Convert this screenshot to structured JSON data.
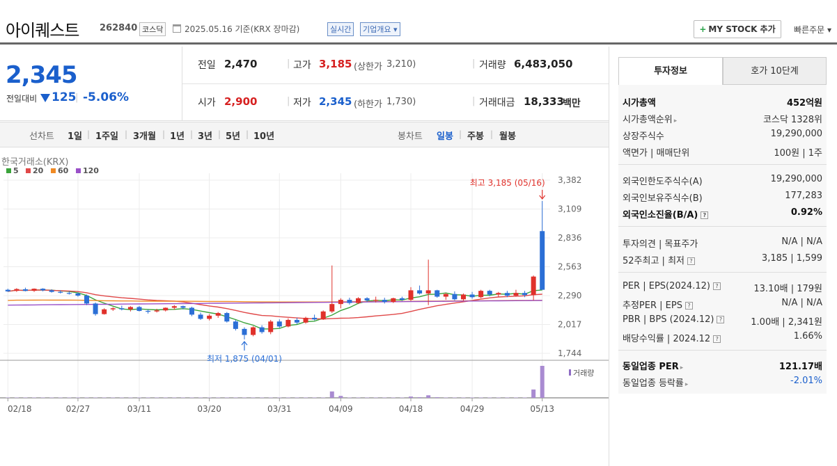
{
  "header": {
    "stock_name": "아이퀘스트",
    "stock_code": "262840",
    "market": "코스닥",
    "date_text": "2025.05.16  기준(KRX 장마감)",
    "realtime_label": "실시간",
    "overview_label": "기업개요",
    "mystock_label": "MY STOCK 추가",
    "quick_order_label": "빠른주문"
  },
  "price": {
    "current": "2,345",
    "change_label": "전일대비",
    "change_value": "125",
    "change_pct": "-5.06%"
  },
  "stats": {
    "prev_close_label": "전일",
    "prev_close": "2,470",
    "high_label": "고가",
    "high": "3,185",
    "upper_limit_label": "(상한가",
    "upper_limit": "3,210)",
    "volume_label": "거래량",
    "volume": "6,483,050",
    "open_label": "시가",
    "open": "2,900",
    "low_label": "저가",
    "low": "2,345",
    "lower_limit_label": "(하한가",
    "lower_limit": "1,730)",
    "amount_label": "거래대금",
    "amount": "18,333",
    "amount_unit": "백만"
  },
  "period_bar": {
    "line_label": "선차트",
    "periods": [
      "1일",
      "1주일",
      "3개월",
      "1년",
      "3년",
      "5년",
      "10년"
    ],
    "candle_label": "봉차트",
    "candles": [
      "일봉",
      "주봉",
      "월봉"
    ]
  },
  "chart_data": {
    "type": "candlestick",
    "source_label": "한국거래소(KRX)",
    "ma_legend": [
      {
        "name": "5",
        "color": "#3aa33a"
      },
      {
        "name": "20",
        "color": "#e04848"
      },
      {
        "name": "60",
        "color": "#f08a24"
      },
      {
        "name": "120",
        "color": "#9a50c8"
      }
    ],
    "y_ticks": [
      "3,382",
      "3,109",
      "2,836",
      "2,563",
      "2,290",
      "2,017",
      "1,744"
    ],
    "x_ticks": [
      "02/18",
      "02/27",
      "03/11",
      "03/20",
      "03/31",
      "04/09",
      "04/18",
      "04/29",
      "05/13"
    ],
    "max_annotation": "최고 3,185 (05/16)",
    "min_annotation": "최저 1,875 (04/01)",
    "volume_label": "거래량",
    "candles": [
      {
        "o": 2345,
        "h": 2355,
        "l": 2325,
        "c": 2330
      },
      {
        "o": 2335,
        "h": 2360,
        "l": 2325,
        "c": 2352
      },
      {
        "o": 2350,
        "h": 2365,
        "l": 2330,
        "c": 2335
      },
      {
        "o": 2335,
        "h": 2358,
        "l": 2325,
        "c": 2355
      },
      {
        "o": 2355,
        "h": 2360,
        "l": 2330,
        "c": 2340
      },
      {
        "o": 2340,
        "h": 2350,
        "l": 2318,
        "c": 2325
      },
      {
        "o": 2325,
        "h": 2340,
        "l": 2310,
        "c": 2318
      },
      {
        "o": 2315,
        "h": 2332,
        "l": 2300,
        "c": 2310
      },
      {
        "o": 2310,
        "h": 2320,
        "l": 2280,
        "c": 2290
      },
      {
        "o": 2290,
        "h": 2300,
        "l": 2200,
        "c": 2215
      },
      {
        "o": 2215,
        "h": 2225,
        "l": 2100,
        "c": 2115
      },
      {
        "o": 2115,
        "h": 2170,
        "l": 2110,
        "c": 2160
      },
      {
        "o": 2160,
        "h": 2180,
        "l": 2145,
        "c": 2170
      },
      {
        "o": 2170,
        "h": 2195,
        "l": 2150,
        "c": 2160
      },
      {
        "o": 2160,
        "h": 2190,
        "l": 2140,
        "c": 2182
      },
      {
        "o": 2182,
        "h": 2192,
        "l": 2140,
        "c": 2145
      },
      {
        "o": 2145,
        "h": 2160,
        "l": 2120,
        "c": 2140
      },
      {
        "o": 2140,
        "h": 2165,
        "l": 2130,
        "c": 2150
      },
      {
        "o": 2150,
        "h": 2178,
        "l": 2140,
        "c": 2175
      },
      {
        "o": 2175,
        "h": 2200,
        "l": 2155,
        "c": 2190
      },
      {
        "o": 2190,
        "h": 2195,
        "l": 2160,
        "c": 2175
      },
      {
        "o": 2175,
        "h": 2185,
        "l": 2095,
        "c": 2110
      },
      {
        "o": 2110,
        "h": 2130,
        "l": 2060,
        "c": 2070
      },
      {
        "o": 2070,
        "h": 2115,
        "l": 2055,
        "c": 2100
      },
      {
        "o": 2100,
        "h": 2135,
        "l": 2080,
        "c": 2125
      },
      {
        "o": 2125,
        "h": 2135,
        "l": 2035,
        "c": 2045
      },
      {
        "o": 2045,
        "h": 2060,
        "l": 1960,
        "c": 1975
      },
      {
        "o": 1975,
        "h": 1990,
        "l": 1875,
        "c": 1918
      },
      {
        "o": 1918,
        "h": 2000,
        "l": 1905,
        "c": 1990
      },
      {
        "o": 1990,
        "h": 2010,
        "l": 1930,
        "c": 1945
      },
      {
        "o": 1945,
        "h": 2060,
        "l": 1925,
        "c": 2045
      },
      {
        "o": 2045,
        "h": 2065,
        "l": 1985,
        "c": 1998
      },
      {
        "o": 1998,
        "h": 2075,
        "l": 1990,
        "c": 2060
      },
      {
        "o": 2060,
        "h": 2080,
        "l": 2020,
        "c": 2035
      },
      {
        "o": 2035,
        "h": 2090,
        "l": 2025,
        "c": 2080
      },
      {
        "o": 2080,
        "h": 2110,
        "l": 2055,
        "c": 2065
      },
      {
        "o": 2065,
        "h": 2150,
        "l": 2060,
        "c": 2140
      },
      {
        "o": 2140,
        "h": 2575,
        "l": 2125,
        "c": 2210
      },
      {
        "o": 2210,
        "h": 2265,
        "l": 2170,
        "c": 2250
      },
      {
        "o": 2250,
        "h": 2270,
        "l": 2205,
        "c": 2220
      },
      {
        "o": 2220,
        "h": 2275,
        "l": 2210,
        "c": 2265
      },
      {
        "o": 2265,
        "h": 2275,
        "l": 2230,
        "c": 2245
      },
      {
        "o": 2245,
        "h": 2280,
        "l": 2225,
        "c": 2250
      },
      {
        "o": 2250,
        "h": 2270,
        "l": 2215,
        "c": 2230
      },
      {
        "o": 2230,
        "h": 2270,
        "l": 2220,
        "c": 2265
      },
      {
        "o": 2265,
        "h": 2280,
        "l": 2240,
        "c": 2250
      },
      {
        "o": 2250,
        "h": 2370,
        "l": 2240,
        "c": 2340
      },
      {
        "o": 2340,
        "h": 2385,
        "l": 2300,
        "c": 2310
      },
      {
        "o": 2310,
        "h": 2630,
        "l": 2200,
        "c": 2340
      },
      {
        "o": 2340,
        "h": 2345,
        "l": 2270,
        "c": 2280
      },
      {
        "o": 2280,
        "h": 2315,
        "l": 2250,
        "c": 2305
      },
      {
        "o": 2305,
        "h": 2330,
        "l": 2245,
        "c": 2255
      },
      {
        "o": 2255,
        "h": 2310,
        "l": 2240,
        "c": 2300
      },
      {
        "o": 2300,
        "h": 2325,
        "l": 2260,
        "c": 2275
      },
      {
        "o": 2275,
        "h": 2345,
        "l": 2265,
        "c": 2335
      },
      {
        "o": 2335,
        "h": 2345,
        "l": 2285,
        "c": 2300
      },
      {
        "o": 2300,
        "h": 2325,
        "l": 2280,
        "c": 2315
      },
      {
        "o": 2315,
        "h": 2335,
        "l": 2275,
        "c": 2290
      },
      {
        "o": 2290,
        "h": 2345,
        "l": 2280,
        "c": 2315
      },
      {
        "o": 2315,
        "h": 2335,
        "l": 2275,
        "c": 2295
      },
      {
        "o": 2295,
        "h": 2480,
        "l": 2245,
        "c": 2470
      },
      {
        "o": 2900,
        "h": 3185,
        "l": 2345,
        "c": 2345
      }
    ],
    "volume": [
      0.01,
      0.01,
      0.01,
      0.01,
      0.01,
      0.01,
      0.01,
      0.01,
      0.01,
      0.01,
      0.01,
      0.01,
      0.01,
      0.01,
      0.01,
      0.01,
      0.01,
      0.01,
      0.01,
      0.01,
      0.01,
      0.01,
      0.01,
      0.01,
      0.01,
      0.01,
      0.01,
      0.01,
      0.01,
      0.01,
      0.01,
      0.01,
      0.01,
      0.01,
      0.01,
      0.01,
      0.01,
      0.2,
      0.06,
      0.01,
      0.01,
      0.01,
      0.01,
      0.01,
      0.01,
      0.01,
      0.04,
      0.02,
      0.08,
      0.02,
      0.01,
      0.01,
      0.01,
      0.01,
      0.01,
      0.01,
      0.01,
      0.01,
      0.01,
      0.01,
      0.26,
      1.0
    ]
  },
  "invest_info": {
    "tab_invest": "투자정보",
    "tab_ask": "호가 10단계",
    "market_cap_label": "시가총액",
    "market_cap": "452억원",
    "rank_label": "시가총액순위",
    "rank": "코스닥 1328위",
    "shares_label": "상장주식수",
    "shares": "19,290,000",
    "par_label": "액면가 | 매매단위",
    "par": "100원 | 1주",
    "foreign_limit_label": "외국인한도주식수(A)",
    "foreign_limit": "19,290,000",
    "foreign_hold_label": "외국인보유주식수(B)",
    "foreign_hold": "177,283",
    "foreign_ratio_label": "외국인소진율(B/A)",
    "foreign_ratio": "0.92%",
    "opinion_label": "투자의견 | 목표주가",
    "opinion": "N/A | N/A",
    "w52_label": "52주최고 | 최저",
    "w52": "3,185 | 1,599",
    "per_label": "PER | EPS(2024.12)",
    "per": "13.10배 | 179원",
    "est_per_label": "추정PER | EPS",
    "est_per": "N/A | N/A",
    "pbr_label": "PBR | BPS (2024.12)",
    "pbr": "1.00배 | 2,341원",
    "div_label": "배당수익률 | 2024.12",
    "div": "1.66%",
    "sector_per_label": "동일업종 PER",
    "sector_per": "121.17배",
    "sector_chg_label": "동일업종 등락률",
    "sector_chg": "-2.01%"
  }
}
